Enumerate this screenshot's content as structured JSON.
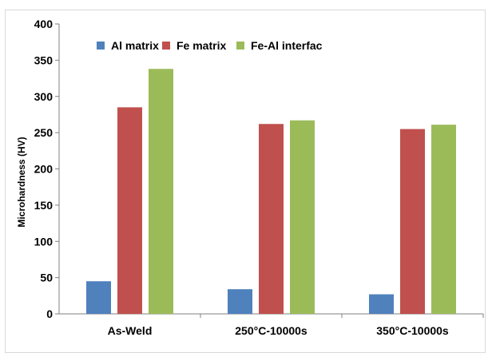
{
  "chart_data": {
    "type": "bar",
    "categories": [
      "As-Weld",
      "250°C-10000s",
      "350°C-10000s"
    ],
    "series": [
      {
        "name": "Al matrix",
        "values": [
          45,
          34,
          27
        ],
        "color": "#4f81bd"
      },
      {
        "name": "Fe matrix",
        "values": [
          285,
          262,
          255
        ],
        "color": "#c0504d"
      },
      {
        "name": "Fe-Al interfac",
        "values": [
          338,
          267,
          261
        ],
        "color": "#9bbb59"
      }
    ],
    "title": "",
    "xlabel": "",
    "ylabel": "Microhardness (HV)",
    "ylim": [
      0,
      400
    ],
    "yticks": [
      "0",
      "50",
      "100",
      "150",
      "200",
      "250",
      "300",
      "350",
      "400"
    ],
    "grid": false,
    "legend_position": "top-left"
  }
}
